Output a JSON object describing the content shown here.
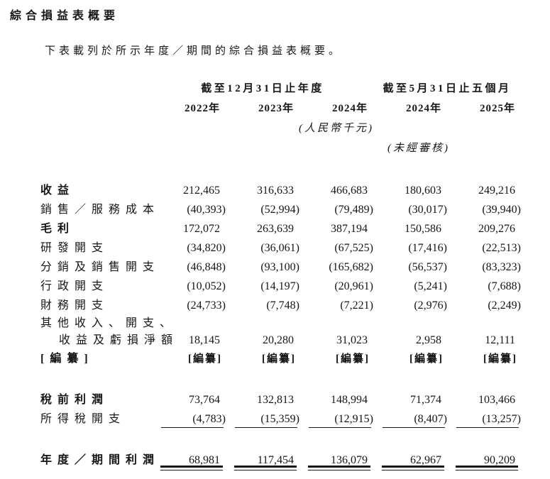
{
  "page": {
    "title": "綜合損益表概要",
    "intro": "下表載列於所示年度／期間的綜合損益表概要。"
  },
  "table": {
    "col_groups": [
      {
        "label": "截至12月31日止年度",
        "span": 3
      },
      {
        "label": "截至5月31日止五個月",
        "span": 2
      }
    ],
    "year_headers": [
      "2022年",
      "2023年",
      "2024年",
      "2024年",
      "2025年"
    ],
    "unit_note": "(人民幣千元)",
    "unaudited_note": "(未經審核)",
    "rows": [
      {
        "label": "收益",
        "bold": true,
        "values": [
          "212,465",
          "316,633",
          "466,683",
          "180,603",
          "249,216"
        ]
      },
      {
        "label": "銷售／服務成本",
        "values": [
          "(40,393)",
          "(52,994)",
          "(79,489)",
          "(30,017)",
          "(39,940)"
        ]
      },
      {
        "label": "毛利",
        "bold": true,
        "values": [
          "172,072",
          "263,639",
          "387,194",
          "150,586",
          "209,276"
        ]
      },
      {
        "label": "研發開支",
        "values": [
          "(34,820)",
          "(36,061)",
          "(67,525)",
          "(17,416)",
          "(22,513)"
        ]
      },
      {
        "label": "分銷及銷售開支",
        "values": [
          "(46,848)",
          "(93,100)",
          "(165,682)",
          "(56,537)",
          "(83,323)"
        ]
      },
      {
        "label": "行政開支",
        "values": [
          "(10,052)",
          "(14,197)",
          "(20,961)",
          "(5,241)",
          "(7,688)"
        ]
      },
      {
        "label": "財務開支",
        "values": [
          "(24,733)",
          "(7,748)",
          "(7,221)",
          "(2,976)",
          "(2,249)"
        ]
      },
      {
        "label": "其他收入、開支、",
        "wrap": true,
        "values": [
          "",
          "",
          "",
          "",
          ""
        ]
      },
      {
        "label": "收益及虧損淨額",
        "indent": true,
        "values": [
          "18,145",
          "20,280",
          "31,023",
          "2,958",
          "12,111"
        ]
      },
      {
        "label": "[編纂]",
        "bold": true,
        "values": [
          "[編纂]",
          "[編纂]",
          "[編纂]",
          "[編纂]",
          "[編纂]"
        ]
      },
      {
        "spacer": true
      },
      {
        "label": "稅前利潤",
        "bold": true,
        "values": [
          "73,764",
          "132,813",
          "148,994",
          "71,374",
          "103,466"
        ]
      },
      {
        "label": "所得稅開支",
        "rule": "single",
        "values": [
          "(4,783)",
          "(15,359)",
          "(12,915)",
          "(8,407)",
          "(13,257)"
        ]
      },
      {
        "spacer": true
      },
      {
        "label": "年度／期間利潤",
        "bold": true,
        "rule": "double",
        "values": [
          "68,981",
          "117,454",
          "136,079",
          "62,967",
          "90,209"
        ]
      }
    ]
  }
}
